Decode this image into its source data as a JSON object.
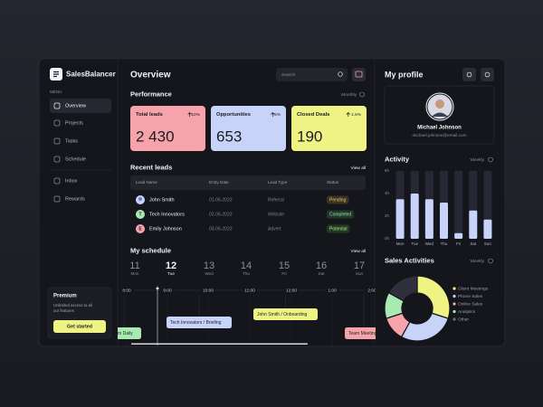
{
  "sidebar": {
    "brand": "SalesBalancer",
    "menu_label": "MENU",
    "menu": [
      "Overview",
      "Projects",
      "Tasks",
      "Schedule",
      "Inbox",
      "Rewards"
    ],
    "premium": {
      "title": "Premium",
      "description": [
        "Unlimited access to all",
        "our features"
      ],
      "button": "Get started"
    }
  },
  "header": {
    "title": "Overview",
    "search_placeholder": "Search"
  },
  "performance": {
    "title": "Performance",
    "period": "Monthly",
    "cards": [
      {
        "title": "Total leads",
        "change": "10%",
        "value": "2 430",
        "color": "#f6a3ab"
      },
      {
        "title": "Opportunities",
        "change": "5%",
        "value": "653",
        "color": "#c7d3f8"
      },
      {
        "title": "Closed Deals",
        "change": "1.5%",
        "value": "190",
        "color": "#eef384"
      }
    ]
  },
  "recent_leads": {
    "title": "Recent leads",
    "link": "View all",
    "columns": [
      "Lead Name",
      "Entry Date",
      "Lead Type",
      "Status"
    ],
    "rows": [
      {
        "cells": [
          "John Smith",
          "01-06-2023",
          "Referral",
          "Pending"
        ]
      },
      {
        "initial": "T",
        "cells": [
          "Tech Innovators",
          "02-06-2023",
          "Website",
          "Completed"
        ]
      },
      {
        "initial": "E",
        "cells": [
          "Emily Johnson",
          "03-06-2023",
          "Advert",
          "Potential"
        ]
      }
    ]
  },
  "schedule": {
    "title": "My schedule",
    "link": "View all",
    "days": [
      {
        "date": 11,
        "weekday": "Mon"
      },
      {
        "date": 12,
        "weekday": "Tue",
        "selected": true
      },
      {
        "date": 13,
        "weekday": "Wed"
      },
      {
        "date": 14,
        "weekday": "Thu"
      },
      {
        "date": 15,
        "weekday": "Fri"
      },
      {
        "date": 16,
        "weekday": "Sat"
      },
      {
        "date": 17,
        "weekday": "Sun"
      }
    ],
    "times": [
      "8:00",
      "9:00",
      "10:00",
      "11:00",
      "12:00",
      "1:00",
      "2:00"
    ],
    "events": [
      {
        "title": "Team Daily",
        "color": "#a9eab2"
      },
      {
        "title": "Tech Innovators / Briefing",
        "color": "#c7d3f8"
      },
      {
        "title": "John Smith / Onboarding",
        "color": "#eef384"
      },
      {
        "title": "Team Meeting",
        "color": "#f6a3ab"
      }
    ]
  },
  "profile": {
    "title": "My profile",
    "name": "Michael Johnson",
    "email": "michael.johnson@email.com"
  },
  "activity": {
    "type": "bar",
    "title": "Activity",
    "period": "Weekly",
    "categories": [
      "Mon",
      "Tue",
      "Wed",
      "Thu",
      "Fri",
      "Sat",
      "Sun"
    ],
    "values": [
      3.5,
      4,
      3.5,
      3.2,
      0.5,
      2.5,
      1.7
    ],
    "color": "#c7d3f8",
    "ylim": [
      0,
      6
    ],
    "yticks": [
      {
        "value": 0,
        "label": "0h"
      },
      {
        "value": 2,
        "label": "2h"
      },
      {
        "value": 4,
        "label": "4h"
      },
      {
        "value": 6,
        "label": "6h"
      }
    ]
  },
  "sales_activities": {
    "type": "pie",
    "title": "Sales Activities",
    "period": "Weekly",
    "categories": [
      "Client Meetings",
      "Phone Sales",
      "Online Sales",
      "Analytics",
      "Other"
    ],
    "values": [
      30,
      28,
      12,
      13,
      17
    ],
    "colors": [
      "#eef384",
      "#c7d3f8",
      "#f6a3ab",
      "#a9eab2",
      "#2f303b"
    ]
  }
}
